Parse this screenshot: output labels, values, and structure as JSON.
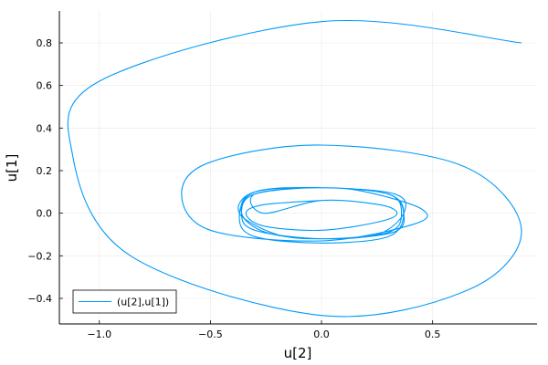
{
  "chart_data": {
    "type": "line",
    "xlabel": "u[2]",
    "ylabel": "u[1]",
    "xlim": [
      -1.18,
      0.97
    ],
    "ylim": [
      -0.52,
      0.95
    ],
    "xticks": [
      -1.0,
      -0.5,
      0.0,
      0.5
    ],
    "xtick_labels": [
      "−1.0",
      "−0.5",
      "0.0",
      "0.5"
    ],
    "yticks": [
      -0.4,
      -0.2,
      0.0,
      0.2,
      0.4,
      0.6,
      0.8
    ],
    "yticks_labels": [
      "−0.4",
      "−0.2",
      "0.0",
      "0.2",
      "0.4",
      "0.6",
      "0.8"
    ],
    "grid": true,
    "legend_position": "bottom-left",
    "line_color": "#009AFA",
    "series": [
      {
        "name": "(u[2],u[1])",
        "x": [
          0.9,
          0.0,
          -1.0,
          -1.12,
          -0.86,
          0.0,
          0.66,
          0.9,
          0.64,
          0.0,
          -0.5,
          -0.63,
          -0.5,
          0.0,
          0.42,
          0.45,
          0.2,
          0.0,
          -0.3,
          -0.36,
          -0.25,
          0.0,
          0.3,
          0.36,
          0.3,
          0.0,
          -0.3,
          -0.36,
          -0.3,
          0.0,
          0.32,
          0.37,
          0.3,
          0.0,
          -0.3,
          -0.37,
          -0.2,
          0.0,
          0.25,
          0.37,
          0.33,
          0.0,
          -0.3,
          -0.37,
          -0.3,
          0.0,
          0.3,
          0.37,
          0.3,
          0.0,
          -0.3,
          -0.26,
          0.0,
          0.26,
          0.34,
          0.26,
          0.0,
          -0.26,
          -0.34,
          -0.26,
          0.0
        ],
        "y": [
          0.8,
          0.9,
          0.62,
          0.27,
          -0.2,
          -0.48,
          -0.36,
          -0.08,
          0.22,
          0.32,
          0.24,
          0.09,
          -0.08,
          -0.13,
          -0.05,
          0.02,
          0.1,
          0.12,
          0.1,
          0.0,
          -0.09,
          -0.12,
          -0.09,
          0.0,
          0.09,
          0.12,
          0.09,
          0.0,
          -0.08,
          -0.12,
          -0.09,
          0.0,
          0.09,
          0.12,
          0.1,
          0.0,
          -0.1,
          -0.12,
          -0.1,
          0.0,
          0.09,
          0.12,
          0.1,
          -0.02,
          -0.11,
          -0.14,
          -0.11,
          0.0,
          0.09,
          0.12,
          0.09,
          0.0,
          0.06,
          0.04,
          0.0,
          -0.04,
          -0.08,
          -0.06,
          0.0,
          0.04,
          0.06
        ]
      }
    ]
  }
}
